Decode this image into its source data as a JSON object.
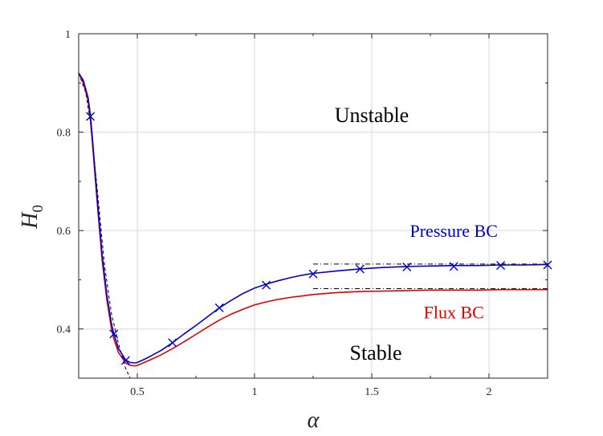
{
  "chart_data": {
    "type": "line",
    "xlabel": "α",
    "ylabel_main": "H",
    "ylabel_sub": "0",
    "xlim": [
      0.25,
      2.25
    ],
    "ylim": [
      0.3,
      1.0
    ],
    "xticks": [
      0.5,
      1,
      1.5,
      2
    ],
    "xtick_labels": [
      "0.5",
      "1",
      "1.5",
      "2"
    ],
    "yticks": [
      0.4,
      0.6,
      0.8,
      1.0
    ],
    "ytick_labels": [
      "0.4",
      "0.6",
      "0.8",
      "1"
    ],
    "grid": true,
    "region_labels": {
      "upper": "Unstable",
      "lower": "Stable"
    },
    "colors": {
      "pressure": "#0000cc",
      "flux": "#e00000",
      "asymptote": "#000000",
      "grid": "#d9d9d9",
      "axes": "#262626"
    },
    "series": [
      {
        "name": "Pressure BC",
        "color": "#0000cc",
        "x": [
          0.25,
          0.27,
          0.29,
          0.3,
          0.31,
          0.33,
          0.35,
          0.37,
          0.39,
          0.4,
          0.42,
          0.44,
          0.45,
          0.47,
          0.49,
          0.5,
          0.52,
          0.55,
          0.6,
          0.65,
          0.7,
          0.75,
          0.8,
          0.85,
          0.9,
          0.95,
          1.0,
          1.05,
          1.1,
          1.15,
          1.2,
          1.25,
          1.35,
          1.45,
          1.55,
          1.65,
          1.75,
          1.85,
          1.95,
          2.05,
          2.15,
          2.25
        ],
        "y": [
          0.92,
          0.905,
          0.87,
          0.835,
          0.78,
          0.66,
          0.55,
          0.47,
          0.41,
          0.39,
          0.36,
          0.345,
          0.337,
          0.332,
          0.331,
          0.332,
          0.336,
          0.343,
          0.356,
          0.372,
          0.39,
          0.407,
          0.425,
          0.443,
          0.458,
          0.472,
          0.483,
          0.491,
          0.498,
          0.504,
          0.509,
          0.513,
          0.518,
          0.522,
          0.525,
          0.527,
          0.528,
          0.529,
          0.529,
          0.53,
          0.53,
          0.531
        ]
      },
      {
        "name": "Flux BC",
        "color": "#e00000",
        "x": [
          0.25,
          0.27,
          0.29,
          0.3,
          0.31,
          0.33,
          0.35,
          0.37,
          0.39,
          0.4,
          0.42,
          0.44,
          0.45,
          0.47,
          0.49,
          0.5,
          0.52,
          0.55,
          0.6,
          0.65,
          0.7,
          0.75,
          0.8,
          0.85,
          0.9,
          0.95,
          1.0,
          1.05,
          1.1,
          1.15,
          1.2,
          1.25,
          1.35,
          1.45,
          1.55,
          1.65,
          1.75,
          1.85,
          1.95,
          2.05,
          2.15,
          2.25
        ],
        "y": [
          0.92,
          0.9,
          0.865,
          0.825,
          0.77,
          0.65,
          0.54,
          0.46,
          0.4,
          0.38,
          0.352,
          0.338,
          0.331,
          0.326,
          0.325,
          0.326,
          0.33,
          0.336,
          0.347,
          0.36,
          0.374,
          0.389,
          0.404,
          0.418,
          0.43,
          0.44,
          0.449,
          0.455,
          0.46,
          0.464,
          0.467,
          0.47,
          0.474,
          0.476,
          0.477,
          0.478,
          0.479,
          0.479,
          0.479,
          0.48,
          0.48,
          0.48
        ]
      }
    ],
    "markers": {
      "series": "Pressure BC",
      "shape": "x",
      "x": [
        0.3,
        0.4,
        0.45,
        0.65,
        0.85,
        1.05,
        1.25,
        1.45,
        1.65,
        1.85,
        2.05,
        2.25
      ],
      "y": [
        0.832,
        0.39,
        0.336,
        0.372,
        0.443,
        0.489,
        0.512,
        0.522,
        0.526,
        0.527,
        0.529,
        0.53
      ]
    },
    "asymptotes": [
      {
        "x_start": 1.25,
        "y": 0.532,
        "style": "dash-dot"
      },
      {
        "x_start": 1.25,
        "y": 0.482,
        "style": "dash-dot"
      }
    ],
    "small_alpha_asymptote": {
      "style": "dashed",
      "x": [
        0.25,
        0.28,
        0.3,
        0.33,
        0.36,
        0.39,
        0.42,
        0.45,
        0.47
      ],
      "y": [
        0.92,
        0.88,
        0.82,
        0.68,
        0.53,
        0.43,
        0.37,
        0.32,
        0.3
      ]
    },
    "annotations": [
      {
        "text": "Pressure BC",
        "x": 1.85,
        "y": 0.6,
        "color": "#0000cc"
      },
      {
        "text": "Flux BC",
        "x": 1.85,
        "y": 0.435,
        "color": "#e00000"
      }
    ]
  }
}
